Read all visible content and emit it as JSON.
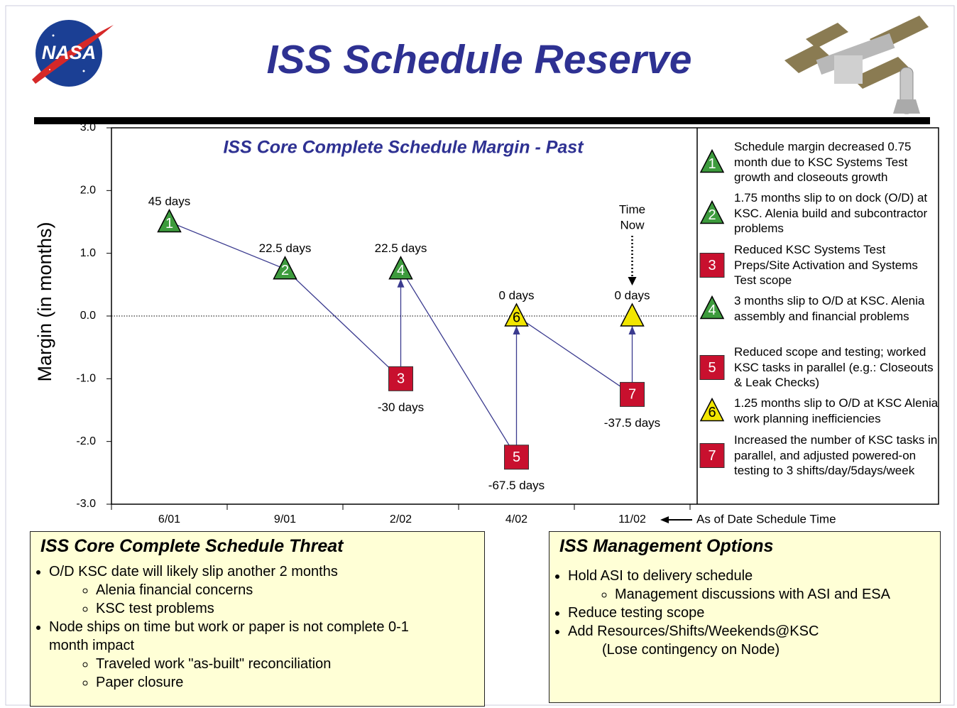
{
  "header": {
    "logo_text": "NASA",
    "title": "ISS Schedule Reserve"
  },
  "chart_data": {
    "type": "line",
    "title": "ISS Core Complete Schedule Margin - Past",
    "y_label": "Margin (in months)",
    "categories": [
      "6/01",
      "9/01",
      "2/02",
      "4/02",
      "11/02"
    ],
    "x_annotation": "As of Date Schedule Time",
    "time_now": {
      "x": "11/02",
      "lines": [
        "Time",
        "Now"
      ]
    },
    "ylim": [
      -3,
      3
    ],
    "yticks": [
      {
        "value": 3,
        "label": "3.0"
      },
      {
        "value": 2,
        "label": "2.0"
      },
      {
        "value": 1,
        "label": "1.0"
      },
      {
        "value": 0,
        "label": "0.0"
      },
      {
        "value": -1,
        "label": "-1.0"
      },
      {
        "value": -2,
        "label": "-2.0"
      },
      {
        "value": -3,
        "label": "-3.0"
      }
    ],
    "zero_line": true,
    "line_color": "#3b3b8f",
    "points": [
      {
        "x": "6/01",
        "value": 1.5,
        "label": "1",
        "value_label": "45 days",
        "shape": "triangle",
        "color": "#3d9b3d"
      },
      {
        "x": "9/01",
        "value": 0.75,
        "label": "2",
        "value_label": "22.5 days",
        "shape": "triangle",
        "color": "#3d9b3d"
      },
      {
        "x": "2/02",
        "value": -1,
        "label": "3",
        "value_label": "-30 days",
        "shape": "square",
        "color": "#c8102e"
      },
      {
        "x": "2/02",
        "value": 0.75,
        "label": "4",
        "value_label": "22.5 days",
        "shape": "triangle",
        "color": "#3d9b3d"
      },
      {
        "x": "4/02",
        "value": -2.25,
        "label": "5",
        "value_label": "-67.5 days",
        "shape": "square",
        "color": "#c8102e"
      },
      {
        "x": "4/02",
        "value": 0,
        "label": "6",
        "value_label": "0 days",
        "shape": "triangle",
        "color": "#f2e600"
      },
      {
        "x": "11/02",
        "value": -1.25,
        "label": "7",
        "value_label": "-37.5 days",
        "shape": "square",
        "color": "#c8102e"
      },
      {
        "x": "11/02",
        "value": 0,
        "value_label": "0 days",
        "shape": "triangle",
        "color": "#f2e600"
      }
    ],
    "notes": [
      {
        "label": "1",
        "shape": "triangle",
        "color": "#3d9b3d",
        "text": "Schedule margin decreased 0.75 month due to KSC Systems Test growth and closeouts growth"
      },
      {
        "label": "2",
        "shape": "triangle",
        "color": "#3d9b3d",
        "text": "1.75 months slip to on dock (O/D) at KSC.  Alenia build and subcontractor problems"
      },
      {
        "label": "3",
        "shape": "square",
        "color": "#c8102e",
        "text": "Reduced KSC Systems Test Preps/Site Activation and Systems Test scope"
      },
      {
        "label": "4",
        "shape": "triangle",
        "color": "#3d9b3d",
        "text": "3 months slip to O/D at KSC.  Alenia assembly and financial problems"
      },
      {
        "label": "5",
        "shape": "square",
        "color": "#c8102e",
        "text": "Reduced scope and testing; worked KSC tasks in parallel (e.g.: Closeouts & Leak Checks)"
      },
      {
        "label": "6",
        "shape": "triangle",
        "color": "#f2e600",
        "text": "1.25 months slip to O/D at KSC Alenia work planning inefficiencies"
      },
      {
        "label": "7",
        "shape": "square",
        "color": "#c8102e",
        "text": "Increased the number of KSC tasks in parallel, and adjusted powered-on testing to 3 shifts/day/5days/week"
      }
    ]
  },
  "threat": {
    "title": "ISS Core Complete Schedule Threat",
    "items": [
      {
        "text": "O/D KSC date will likely slip another 2 months",
        "sub": [
          "Alenia financial concerns",
          "KSC test problems"
        ]
      },
      {
        "text": "Node ships on time but work or paper is not complete 0-1 month impact",
        "sub": [
          "Traveled work \"as-built\" reconciliation",
          "Paper closure"
        ]
      }
    ]
  },
  "options": {
    "title": "ISS Management Options",
    "items": [
      {
        "text": "Hold ASI to delivery schedule",
        "sub": [
          "Management discussions with ASI and ESA"
        ]
      },
      {
        "text": "Reduce testing scope"
      },
      {
        "text": "Add Resources/Shifts/Weekends@KSC",
        "note": "(Lose contingency on Node)"
      }
    ]
  }
}
